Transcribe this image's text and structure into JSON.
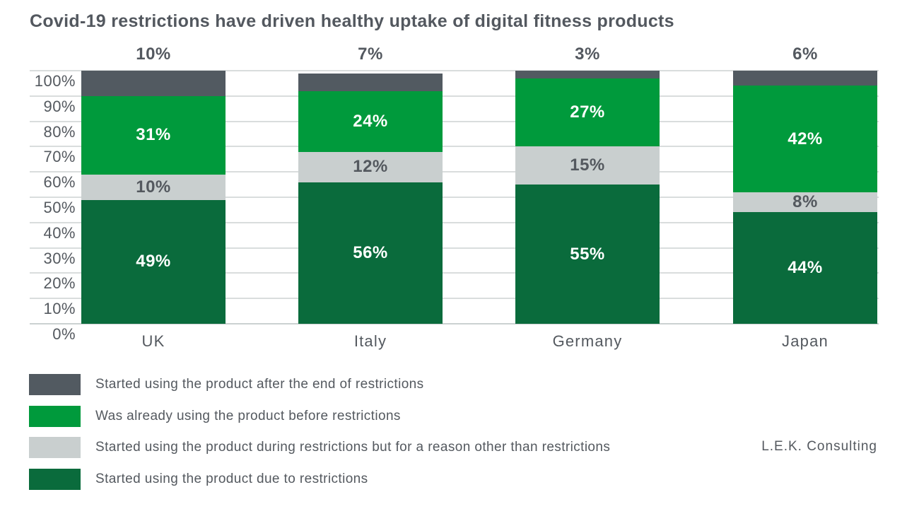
{
  "title": "Covid-19 restrictions have driven healthy uptake of digital fitness products",
  "source": "L.E.K. Consulting",
  "chart_data": {
    "type": "bar",
    "subtype": "stacked-percent-column",
    "title": "Covid-19 restrictions have driven healthy uptake of digital fitness products",
    "categories": [
      "UK",
      "Italy",
      "Germany",
      "Japan"
    ],
    "series": [
      {
        "name": "Started using the product due to restrictions",
        "color_key": "dark_green",
        "label_style": "inside-white",
        "values": [
          49,
          56,
          55,
          44
        ]
      },
      {
        "name": "Started using the product during restrictions but for a reason other than restrictions",
        "color_key": "light_gray",
        "label_style": "inside-dark",
        "values": [
          10,
          12,
          15,
          8
        ]
      },
      {
        "name": "Was already using the product before restrictions",
        "color_key": "green",
        "label_style": "inside-white",
        "values": [
          31,
          24,
          27,
          42
        ]
      },
      {
        "name": "Started using the product after the end of restrictions",
        "color_key": "dark_gray",
        "label_style": "above-bar",
        "values": [
          10,
          7,
          3,
          6
        ]
      }
    ],
    "value_suffix": "%",
    "axis": {
      "y_min": 0,
      "y_max": 100,
      "y_step": 10,
      "y_tick_labels": [
        "0%",
        "10%",
        "20%",
        "30%",
        "40%",
        "50%",
        "60%",
        "70%",
        "80%",
        "90%",
        "100%"
      ],
      "grid": true,
      "grid_color": "#D9DDDD"
    },
    "legend": [
      {
        "color_key": "dark_gray",
        "label": "Started using the product after the end of restrictions"
      },
      {
        "color_key": "green",
        "label": "Was already using the product before restrictions"
      },
      {
        "color_key": "light_gray",
        "label": "Started using the product during restrictions but for a reason other than restrictions"
      },
      {
        "color_key": "dark_green",
        "label": "Started using the product due to restrictions"
      }
    ],
    "legend_position": "bottom-left",
    "colors": {
      "dark_gray": "#525A61",
      "green": "#009A3C",
      "light_gray": "#C9CFCF",
      "dark_green": "#0A6B3C",
      "text": "#54595F",
      "label_on_green": "#FFFFFF",
      "label_on_gray": "#54595F"
    }
  }
}
